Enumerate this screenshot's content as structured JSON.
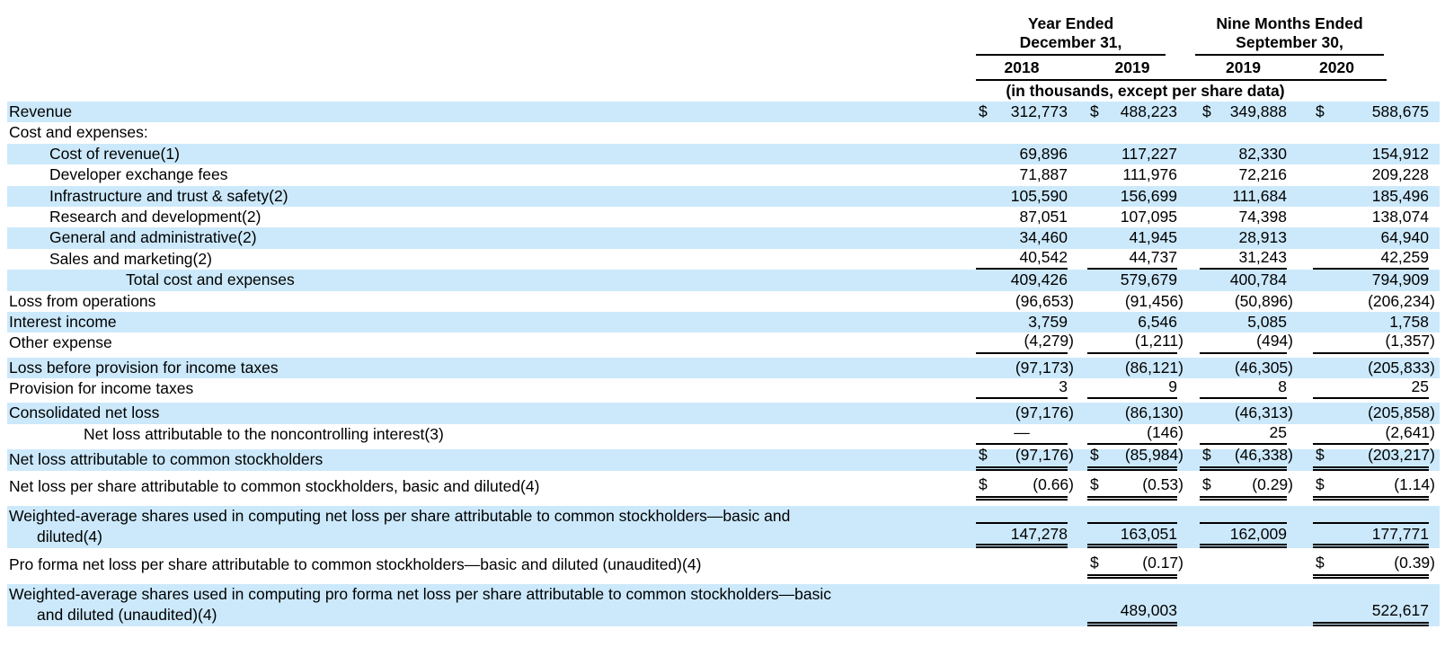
{
  "colors": {
    "row_highlight": "#cce9fb"
  },
  "header": {
    "group1_line1": "Year Ended",
    "group1_line2": "December 31,",
    "group2_line1": "Nine Months Ended",
    "group2_line2": "September 30,",
    "years": [
      "2018",
      "2019",
      "2019",
      "2020"
    ],
    "units_note": "(in thousands, except per share data)"
  },
  "table": {
    "columns": [
      "Year Ended December 31, 2018",
      "Year Ended December 31, 2019",
      "Nine Months Ended September 30, 2019",
      "Nine Months Ended September 30, 2020"
    ],
    "rows": [
      {
        "label": "Revenue",
        "indent": 0,
        "highlight": true,
        "dollar": true,
        "values": [
          "312,773",
          "488,223",
          "349,888",
          "588,675"
        ]
      },
      {
        "label": "Cost and expenses:",
        "indent": 0,
        "highlight": false,
        "values": [
          "",
          "",
          "",
          ""
        ]
      },
      {
        "label": "Cost of revenue(1)",
        "indent": 1,
        "highlight": true,
        "values": [
          "69,896",
          "117,227",
          "82,330",
          "154,912"
        ]
      },
      {
        "label": "Developer exchange fees",
        "indent": 1,
        "highlight": false,
        "values": [
          "71,887",
          "111,976",
          "72,216",
          "209,228"
        ]
      },
      {
        "label": "Infrastructure and trust & safety(2)",
        "indent": 1,
        "highlight": true,
        "values": [
          "105,590",
          "156,699",
          "111,684",
          "185,496"
        ]
      },
      {
        "label": "Research and development(2)",
        "indent": 1,
        "highlight": false,
        "values": [
          "87,051",
          "107,095",
          "74,398",
          "138,074"
        ]
      },
      {
        "label": "General and administrative(2)",
        "indent": 1,
        "highlight": true,
        "values": [
          "34,460",
          "41,945",
          "28,913",
          "64,940"
        ]
      },
      {
        "label": "Sales and marketing(2)",
        "indent": 1,
        "highlight": false,
        "rule": "single",
        "values": [
          "40,542",
          "44,737",
          "31,243",
          "42,259"
        ]
      },
      {
        "label": "Total cost and expenses",
        "indent": 2,
        "highlight": true,
        "values": [
          "409,426",
          "579,679",
          "400,784",
          "794,909"
        ]
      },
      {
        "label": "Loss from operations",
        "indent": 0,
        "highlight": false,
        "values": [
          "(96,653)",
          "(91,456)",
          "(50,896)",
          "(206,234)"
        ]
      },
      {
        "label": "Interest income",
        "indent": 0,
        "highlight": true,
        "values": [
          "3,759",
          "6,546",
          "5,085",
          "1,758"
        ]
      },
      {
        "label": "Other expense",
        "indent": 0,
        "highlight": false,
        "rule": "single",
        "values": [
          "(4,279)",
          "(1,211)",
          "(494)",
          "(1,357)"
        ]
      },
      {
        "label": "Loss before provision for income taxes",
        "indent": 0,
        "highlight": true,
        "values": [
          "(97,173)",
          "(86,121)",
          "(46,305)",
          "(205,833)"
        ]
      },
      {
        "label": "Provision for income taxes",
        "indent": 0,
        "highlight": false,
        "rule": "single",
        "values": [
          "3",
          "9",
          "8",
          "25"
        ]
      },
      {
        "label": "Consolidated net loss",
        "indent": 0,
        "highlight": true,
        "values": [
          "(97,176)",
          "(86,130)",
          "(46,313)",
          "(205,858)"
        ]
      },
      {
        "label": "Net loss attributable to the noncontrolling interest(3)",
        "indent": 3,
        "highlight": false,
        "rule": "single",
        "values": [
          "—",
          "(146)",
          "25",
          "(2,641)"
        ]
      },
      {
        "label": "Net loss attributable to common stockholders",
        "indent": 0,
        "highlight": true,
        "dollar": true,
        "rule": "double",
        "values": [
          "(97,176)",
          "(85,984)",
          "(46,338)",
          "(203,217)"
        ]
      },
      {
        "label": "Net loss per share attributable to common stockholders, basic and diluted(4)",
        "indent": 0,
        "highlight": false,
        "dollar": true,
        "rule": "double",
        "tall": true,
        "values": [
          "(0.66)",
          "(0.53)",
          "(0.29)",
          "(1.14)"
        ]
      },
      {
        "label": "Weighted-average shares used in computing net loss per share attributable to common stockholders—basic and diluted(4)",
        "indent": 0,
        "highlight": true,
        "rule": "double",
        "top_rule": true,
        "two_line": true,
        "values": [
          "147,278",
          "163,051",
          "162,009",
          "177,771"
        ]
      },
      {
        "label": "Pro forma net loss per share attributable to common stockholders—basic and diluted (unaudited)(4)",
        "indent": 0,
        "highlight": false,
        "dollar": true,
        "rule": "double",
        "tall": true,
        "values": [
          "",
          "(0.17)",
          "",
          "(0.39)"
        ]
      },
      {
        "label": "Weighted-average shares used in computing pro forma net loss per share attributable to common stockholders—basic and diluted (unaudited)(4)",
        "indent": 0,
        "highlight": true,
        "rule": "double",
        "two_line": true,
        "values": [
          "",
          "489,003",
          "",
          "522,617"
        ]
      }
    ]
  }
}
